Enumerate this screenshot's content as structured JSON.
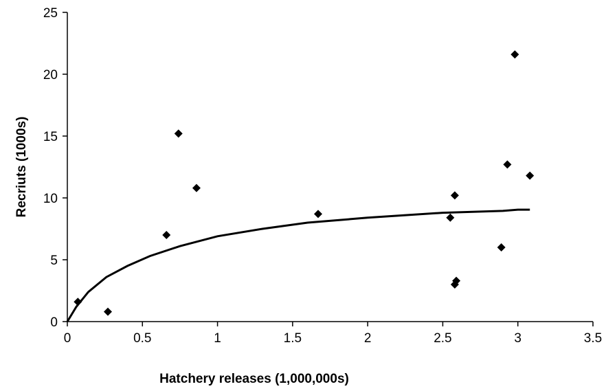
{
  "chart_data": {
    "type": "scatter",
    "title": "",
    "xlabel": "Hatchery releases (1,000,000s)",
    "ylabel": "Recriuts (1000s)",
    "xlim": [
      0,
      3.5
    ],
    "ylim": [
      0,
      25
    ],
    "x_ticks": [
      0,
      0.5,
      1,
      1.5,
      2,
      2.5,
      3,
      3.5
    ],
    "x_tick_labels": [
      "0",
      "0.5",
      "1",
      "1.5",
      "2",
      "2.5",
      "3",
      "3.5"
    ],
    "y_ticks": [
      0,
      5,
      10,
      15,
      20,
      25
    ],
    "y_tick_labels": [
      "0",
      "5",
      "10",
      "15",
      "20",
      "25"
    ],
    "grid": false,
    "legend": "none",
    "marker_color": "#000000",
    "series": [
      {
        "kind": "scatter",
        "marker": "diamond",
        "points": [
          [
            0.07,
            1.6
          ],
          [
            0.27,
            0.8
          ],
          [
            0.66,
            7.0
          ],
          [
            0.74,
            15.2
          ],
          [
            0.86,
            10.8
          ],
          [
            1.67,
            8.7
          ],
          [
            2.55,
            8.4
          ],
          [
            2.58,
            10.2
          ],
          [
            2.58,
            3.0
          ],
          [
            2.59,
            3.3
          ],
          [
            2.89,
            6.0
          ],
          [
            2.93,
            12.7
          ],
          [
            2.98,
            21.6
          ],
          [
            3.08,
            11.8
          ]
        ]
      },
      {
        "kind": "line",
        "points": [
          [
            0,
            0
          ],
          [
            0.06,
            1.2
          ],
          [
            0.14,
            2.4
          ],
          [
            0.26,
            3.6
          ],
          [
            0.4,
            4.5
          ],
          [
            0.55,
            5.3
          ],
          [
            0.75,
            6.1
          ],
          [
            1.0,
            6.9
          ],
          [
            1.3,
            7.5
          ],
          [
            1.6,
            8.0
          ],
          [
            2.0,
            8.4
          ],
          [
            2.5,
            8.8
          ],
          [
            2.9,
            8.95
          ],
          [
            3.0,
            9.05
          ],
          [
            3.08,
            9.05
          ]
        ]
      }
    ]
  }
}
